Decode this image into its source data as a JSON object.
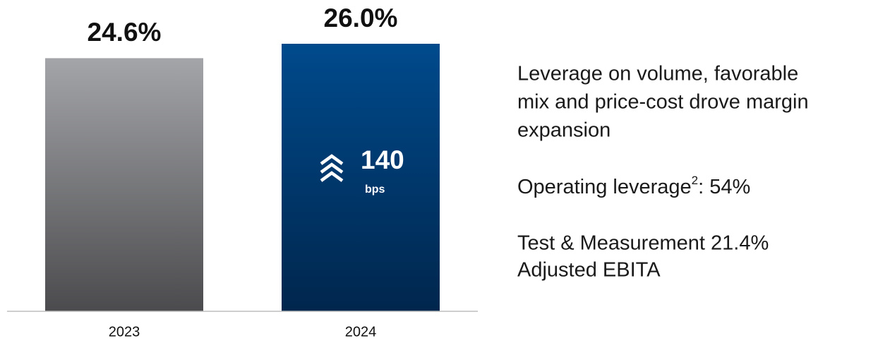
{
  "chart_data": {
    "type": "bar",
    "categories": [
      "2023",
      "2024"
    ],
    "values": [
      24.6,
      26.0
    ],
    "value_labels": [
      "24.6%",
      "26.0%"
    ],
    "colors": [
      "#a4a5a8",
      "#004a8c"
    ],
    "ylim": [
      0,
      26
    ],
    "annotation": {
      "value": 140,
      "unit": "bps"
    },
    "notes": {
      "line1": [
        "Leverage on volume, favorable",
        "mix and price-cost drove margin",
        "expansion"
      ],
      "line2": {
        "text": "Operating leverage",
        "sup": "2",
        "rest": ": 54%"
      },
      "line3": [
        "Test & Measurement 21.4%",
        "Adjusted EBITA"
      ]
    }
  }
}
